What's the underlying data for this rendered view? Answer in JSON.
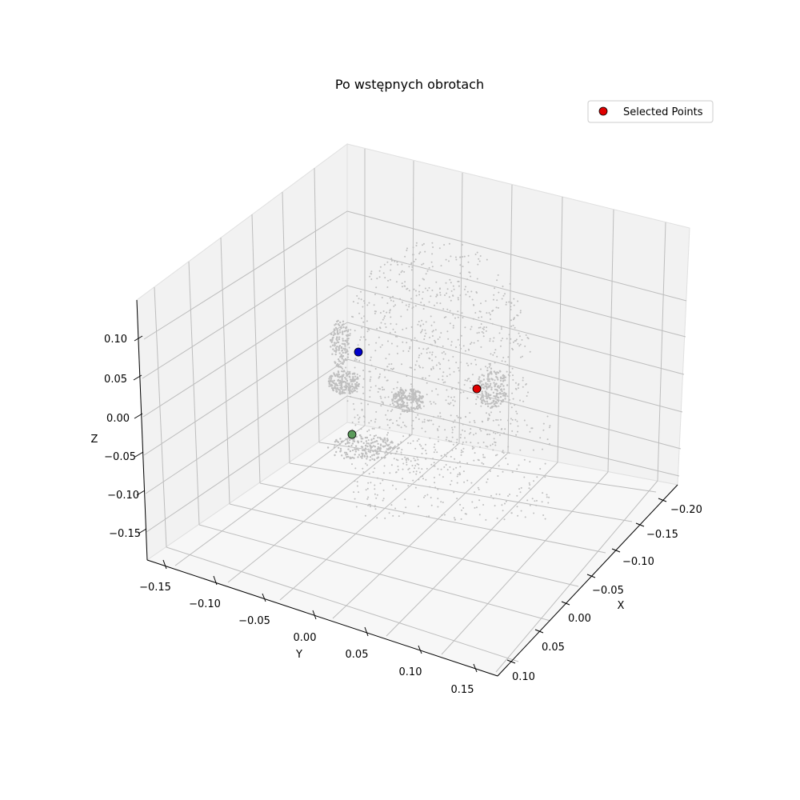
{
  "chart_data": {
    "type": "scatter",
    "title": "Po wstępnych obrotach",
    "xlabel": "X",
    "ylabel": "Y",
    "zlabel": "Z",
    "legend": {
      "entries": [
        "Selected Points"
      ],
      "placement": "top-right"
    },
    "grid": true,
    "x_ticks": [
      "−0.20",
      "−0.15",
      "−0.10",
      "−0.05",
      "0.00",
      "0.05",
      "0.10"
    ],
    "y_ticks": [
      "−0.15",
      "−0.10",
      "−0.05",
      "0.00",
      "0.05",
      "0.10",
      "0.15"
    ],
    "z_ticks": [
      "0.10",
      "0.05",
      "0.00",
      "−0.05",
      "−0.10",
      "−0.15"
    ],
    "colors": {
      "pane": "#f2f2f2",
      "grid": "#b0b0b0",
      "cloud": "#bfbfbf",
      "selected_red": "#e00000",
      "selected_blue": "#0000cc",
      "selected_green": "#5a9a5a"
    },
    "selected_points": [
      {
        "color": "#0000cc",
        "name": "blue"
      },
      {
        "color": "#e00000",
        "name": "red"
      },
      {
        "color": "#5a9a5a",
        "name": "green"
      }
    ]
  }
}
